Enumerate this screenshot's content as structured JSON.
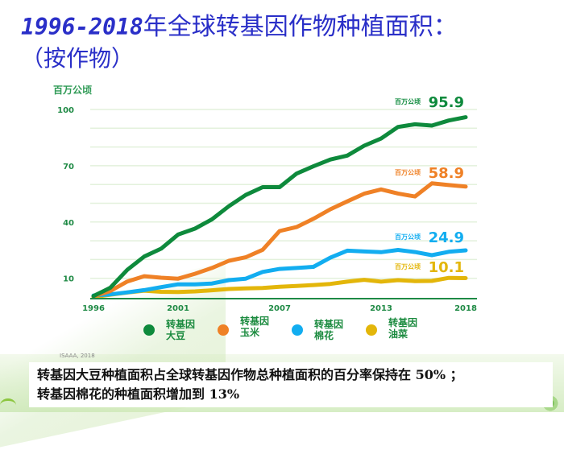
{
  "page": {
    "title_years": "1996-2018",
    "title_rest": "年全球转基因作物种植面积：",
    "subtitle": "（按作物）",
    "source": "ISAAA, 2018",
    "note_line1": "转基因大豆种植面积占全球转基因作物总种植面积的百分率保持在 50% ；",
    "note_line2": "转基因棉花的种植面积增加到 13%"
  },
  "chart_data": {
    "type": "line",
    "title": "1996-2018年全球转基因作物种植面积：（按作物）",
    "ylabel": "百万公顷",
    "xlabel": "",
    "ylim": [
      0,
      100
    ],
    "yticks": [
      10,
      40,
      70,
      100
    ],
    "grid_step": 10,
    "grid": true,
    "x": [
      1996,
      1997,
      1998,
      1999,
      2000,
      2001,
      2002,
      2003,
      2004,
      2005,
      2006,
      2007,
      2008,
      2009,
      2010,
      2011,
      2012,
      2013,
      2014,
      2015,
      2016,
      2017,
      2018
    ],
    "xticks": [
      "1996",
      "2001",
      "2007",
      "2013",
      "2018"
    ],
    "legend_position": "bottom",
    "series": [
      {
        "name": "转基因大豆",
        "legend_lines": [
          "转基因",
          "大豆"
        ],
        "color": "#0e8a3c",
        "end_unit": "百万公顷",
        "end_value": "95.9",
        "values": [
          0.5,
          5,
          14.5,
          21.6,
          25.8,
          33.3,
          36.5,
          41.4,
          48.4,
          54.4,
          58.6,
          58.6,
          65.8,
          69.7,
          73.3,
          75.4,
          80.7,
          84.5,
          90.7,
          92.1,
          91.4,
          94.1,
          95.9
        ]
      },
      {
        "name": "转基因玉米",
        "legend_lines": [
          "转基因",
          "玉米"
        ],
        "color": "#ef8126",
        "end_unit": "百万公顷",
        "end_value": "58.9",
        "values": [
          0.3,
          3.2,
          8.3,
          11.1,
          10.3,
          9.8,
          12.4,
          15.5,
          19.3,
          21.2,
          25.2,
          35.2,
          37.3,
          41.7,
          46.8,
          51.0,
          55.1,
          57.4,
          55.2,
          53.6,
          60.6,
          59.7,
          58.9
        ]
      },
      {
        "name": "转基因棉花",
        "legend_lines": [
          "转基因",
          "棉花"
        ],
        "color": "#12adf0",
        "end_unit": "百万公顷",
        "end_value": "24.9",
        "values": [
          0.8,
          1.4,
          2.5,
          3.7,
          5.3,
          6.8,
          6.8,
          7.2,
          9.0,
          9.8,
          13.4,
          15.0,
          15.5,
          16.1,
          21.0,
          24.7,
          24.3,
          23.9,
          25.1,
          24.0,
          22.3,
          24.1,
          24.9
        ]
      },
      {
        "name": "转基因油菜",
        "legend_lines": [
          "转基因",
          "油菜"
        ],
        "color": "#e3b60a",
        "end_unit": "百万公顷",
        "end_value": "10.1",
        "values": [
          0.1,
          1.2,
          2.4,
          3.4,
          2.8,
          2.7,
          3.0,
          3.6,
          4.3,
          4.6,
          4.8,
          5.5,
          5.9,
          6.4,
          7.0,
          8.2,
          9.2,
          8.2,
          9.0,
          8.5,
          8.6,
          10.2,
          10.1
        ]
      }
    ]
  }
}
